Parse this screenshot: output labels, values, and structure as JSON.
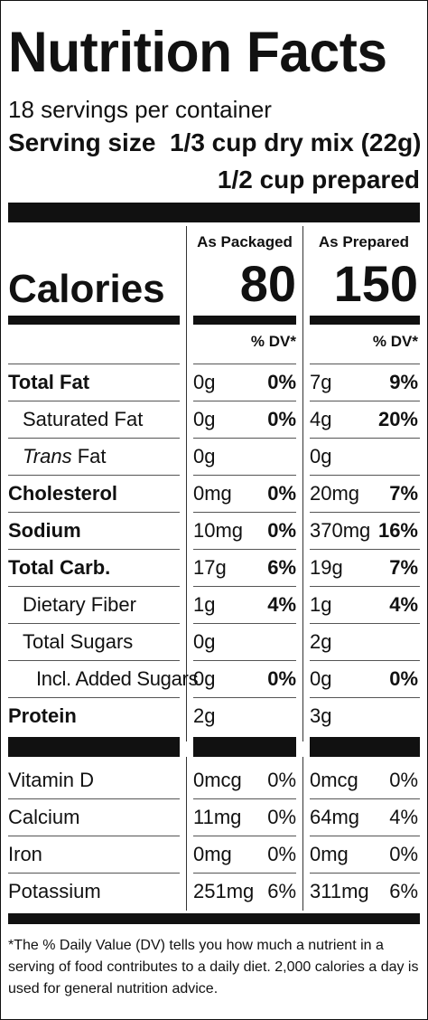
{
  "title": "Nutrition Facts",
  "servings_per_container": "18 servings per container",
  "serving_size_label": "Serving size",
  "serving_size_value": "1/3 cup dry mix (22g)",
  "serving_size_prepared": "1/2 cup prepared",
  "columns": {
    "packaged": "As Packaged",
    "prepared": "As Prepared"
  },
  "calories": {
    "label": "Calories",
    "packaged": "80",
    "prepared": "150"
  },
  "dv_header": "% DV*",
  "nutrients": [
    {
      "name": "Total Fat",
      "pkg_amt": "0g",
      "pkg_dv": "0%",
      "prep_amt": "7g",
      "prep_dv": "9%"
    },
    {
      "name": "Saturated Fat",
      "pkg_amt": "0g",
      "pkg_dv": "0%",
      "prep_amt": "4g",
      "prep_dv": "20%"
    },
    {
      "name_italic": "Trans",
      "name_rest": " Fat",
      "pkg_amt": "0g",
      "pkg_dv": "",
      "prep_amt": "0g",
      "prep_dv": ""
    },
    {
      "name": "Cholesterol",
      "pkg_amt": "0mg",
      "pkg_dv": "0%",
      "prep_amt": "20mg",
      "prep_dv": "7%"
    },
    {
      "name": "Sodium",
      "pkg_amt": "10mg",
      "pkg_dv": "0%",
      "prep_amt": "370mg",
      "prep_dv": "16%"
    },
    {
      "name": "Total Carb.",
      "pkg_amt": "17g",
      "pkg_dv": "6%",
      "prep_amt": "19g",
      "prep_dv": "7%"
    },
    {
      "name": "Dietary Fiber",
      "pkg_amt": "1g",
      "pkg_dv": "4%",
      "prep_amt": "1g",
      "prep_dv": "4%"
    },
    {
      "name": "Total Sugars",
      "pkg_amt": "0g",
      "pkg_dv": "",
      "prep_amt": "2g",
      "prep_dv": ""
    },
    {
      "name": "Incl. Added Sugars",
      "pkg_amt": "0g",
      "pkg_dv": "0%",
      "prep_amt": "0g",
      "prep_dv": "0%"
    },
    {
      "name": "Protein",
      "pkg_amt": "2g",
      "pkg_dv": "",
      "prep_amt": "3g",
      "prep_dv": ""
    }
  ],
  "vitamins": [
    {
      "name": "Vitamin D",
      "pkg_amt": "0mcg",
      "pkg_dv": "0%",
      "prep_amt": "0mcg",
      "prep_dv": "0%"
    },
    {
      "name": "Calcium",
      "pkg_amt": "11mg",
      "pkg_dv": "0%",
      "prep_amt": "64mg",
      "prep_dv": "4%"
    },
    {
      "name": "Iron",
      "pkg_amt": "0mg",
      "pkg_dv": "0%",
      "prep_amt": "0mg",
      "prep_dv": "0%"
    },
    {
      "name": "Potassium",
      "pkg_amt": "251mg",
      "pkg_dv": "6%",
      "prep_amt": "311mg",
      "prep_dv": "6%"
    }
  ],
  "footnote": "*The % Daily Value (DV) tells you how much a nutrient in a serving of food contributes to a daily diet. 2,000 calories a day is used for general nutrition advice."
}
